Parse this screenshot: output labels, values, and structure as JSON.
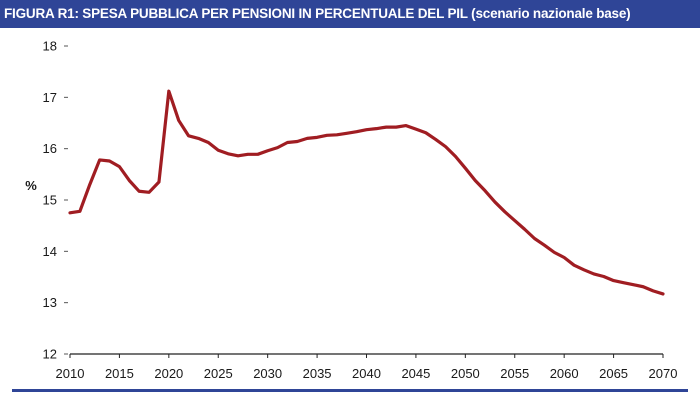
{
  "title": "FIGURA R1: SPESA PUBBLICA PER PENSIONI IN PERCENTUALE DEL PIL (scenario nazionale base)",
  "colors": {
    "title_bg": "#2f4597",
    "line": "#a01d22",
    "axis": "#222222",
    "rule": "#2f4597"
  },
  "chart_data": {
    "type": "line",
    "title": "FIGURA R1: SPESA PUBBLICA PER PENSIONI IN PERCENTUALE DEL PIL (scenario nazionale base)",
    "xlabel": "",
    "ylabel": "%",
    "xlim": [
      2010,
      2070
    ],
    "ylim": [
      12,
      18
    ],
    "yticks": [
      12,
      13,
      14,
      15,
      16,
      17,
      18
    ],
    "xticks": [
      2010,
      2015,
      2020,
      2025,
      2030,
      2035,
      2040,
      2045,
      2050,
      2055,
      2060,
      2065,
      2070
    ],
    "grid": false,
    "legend": "none",
    "series": [
      {
        "x": [
          2010,
          2011,
          2012,
          2013,
          2014,
          2015,
          2016,
          2017,
          2018,
          2019,
          2020,
          2021,
          2022,
          2023,
          2024,
          2025,
          2026,
          2027,
          2028,
          2029,
          2030,
          2031,
          2032,
          2033,
          2034,
          2035,
          2036,
          2037,
          2038,
          2039,
          2040,
          2041,
          2042,
          2043,
          2044,
          2045,
          2046,
          2047,
          2048,
          2049,
          2050,
          2051,
          2052,
          2053,
          2054,
          2055,
          2056,
          2057,
          2058,
          2059,
          2060,
          2061,
          2062,
          2063,
          2064,
          2065,
          2066,
          2067,
          2068,
          2069,
          2070
        ],
        "values": [
          14.75,
          14.78,
          15.3,
          15.78,
          15.76,
          15.65,
          15.38,
          15.17,
          15.15,
          15.35,
          17.12,
          16.55,
          16.25,
          16.2,
          16.12,
          15.97,
          15.9,
          15.86,
          15.89,
          15.89,
          15.96,
          16.02,
          16.12,
          16.14,
          16.2,
          16.22,
          16.26,
          16.27,
          16.3,
          16.33,
          16.37,
          16.39,
          16.42,
          16.42,
          16.45,
          16.38,
          16.31,
          16.18,
          16.04,
          15.85,
          15.62,
          15.38,
          15.18,
          14.96,
          14.77,
          14.6,
          14.43,
          14.25,
          14.12,
          13.98,
          13.88,
          13.73,
          13.64,
          13.56,
          13.51,
          13.43,
          13.39,
          13.35,
          13.31,
          13.23,
          13.17
        ]
      }
    ]
  }
}
